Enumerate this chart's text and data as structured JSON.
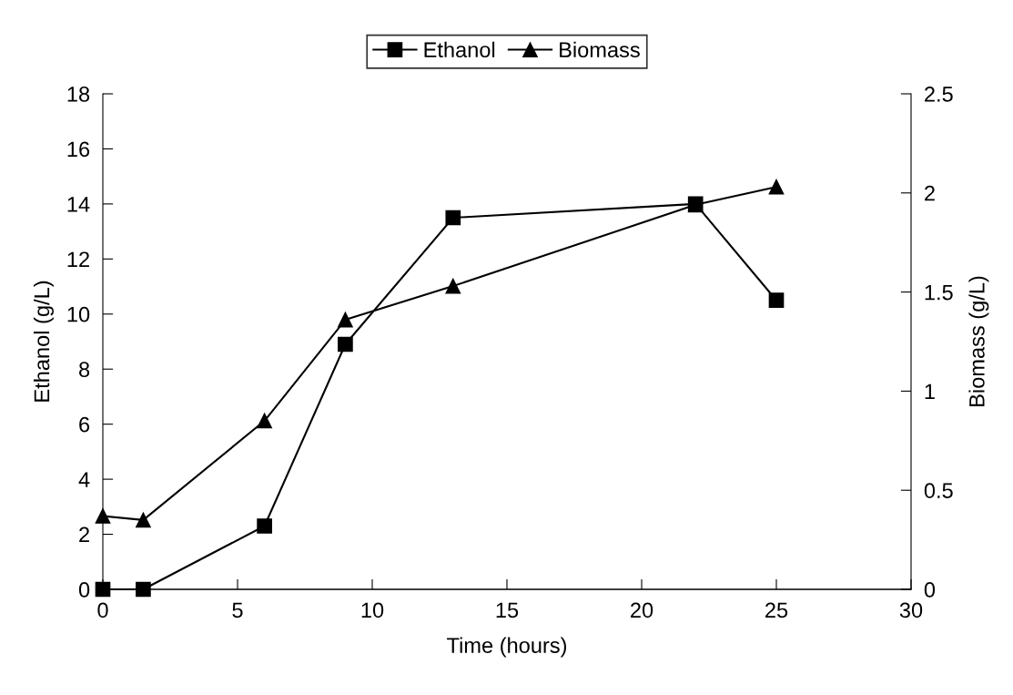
{
  "chart_data": {
    "type": "line",
    "xlabel": "Time (hours)",
    "ylabel": "Ethanol (g/L)",
    "y2label": "Biomass (g/L)",
    "xlim": [
      0,
      30
    ],
    "xticks": [
      0,
      5,
      10,
      15,
      20,
      25,
      30
    ],
    "ylim": [
      0,
      18
    ],
    "yticks": [
      0,
      2,
      4,
      6,
      8,
      10,
      12,
      14,
      16,
      18
    ],
    "y2lim": [
      0,
      2.5
    ],
    "y2ticks": [
      0,
      0.5,
      1,
      1.5,
      2,
      2.5
    ],
    "grid": false,
    "legend": "top",
    "series": [
      {
        "name": "Ethanol",
        "color": "#000000",
        "marker": "square",
        "x": [
          0,
          1.5,
          6,
          9,
          13,
          22,
          25
        ],
        "values": [
          0,
          0,
          2.3,
          8.9,
          13.5,
          14.0,
          10.5
        ]
      },
      {
        "name": "Biomass",
        "color": "#000000",
        "marker": "triangle",
        "axis": "y2",
        "x": [
          0,
          1.5,
          6,
          9,
          13,
          22,
          25
        ],
        "values": [
          0.37,
          0.35,
          0.85,
          1.36,
          1.53,
          1.94,
          2.03
        ]
      }
    ]
  }
}
